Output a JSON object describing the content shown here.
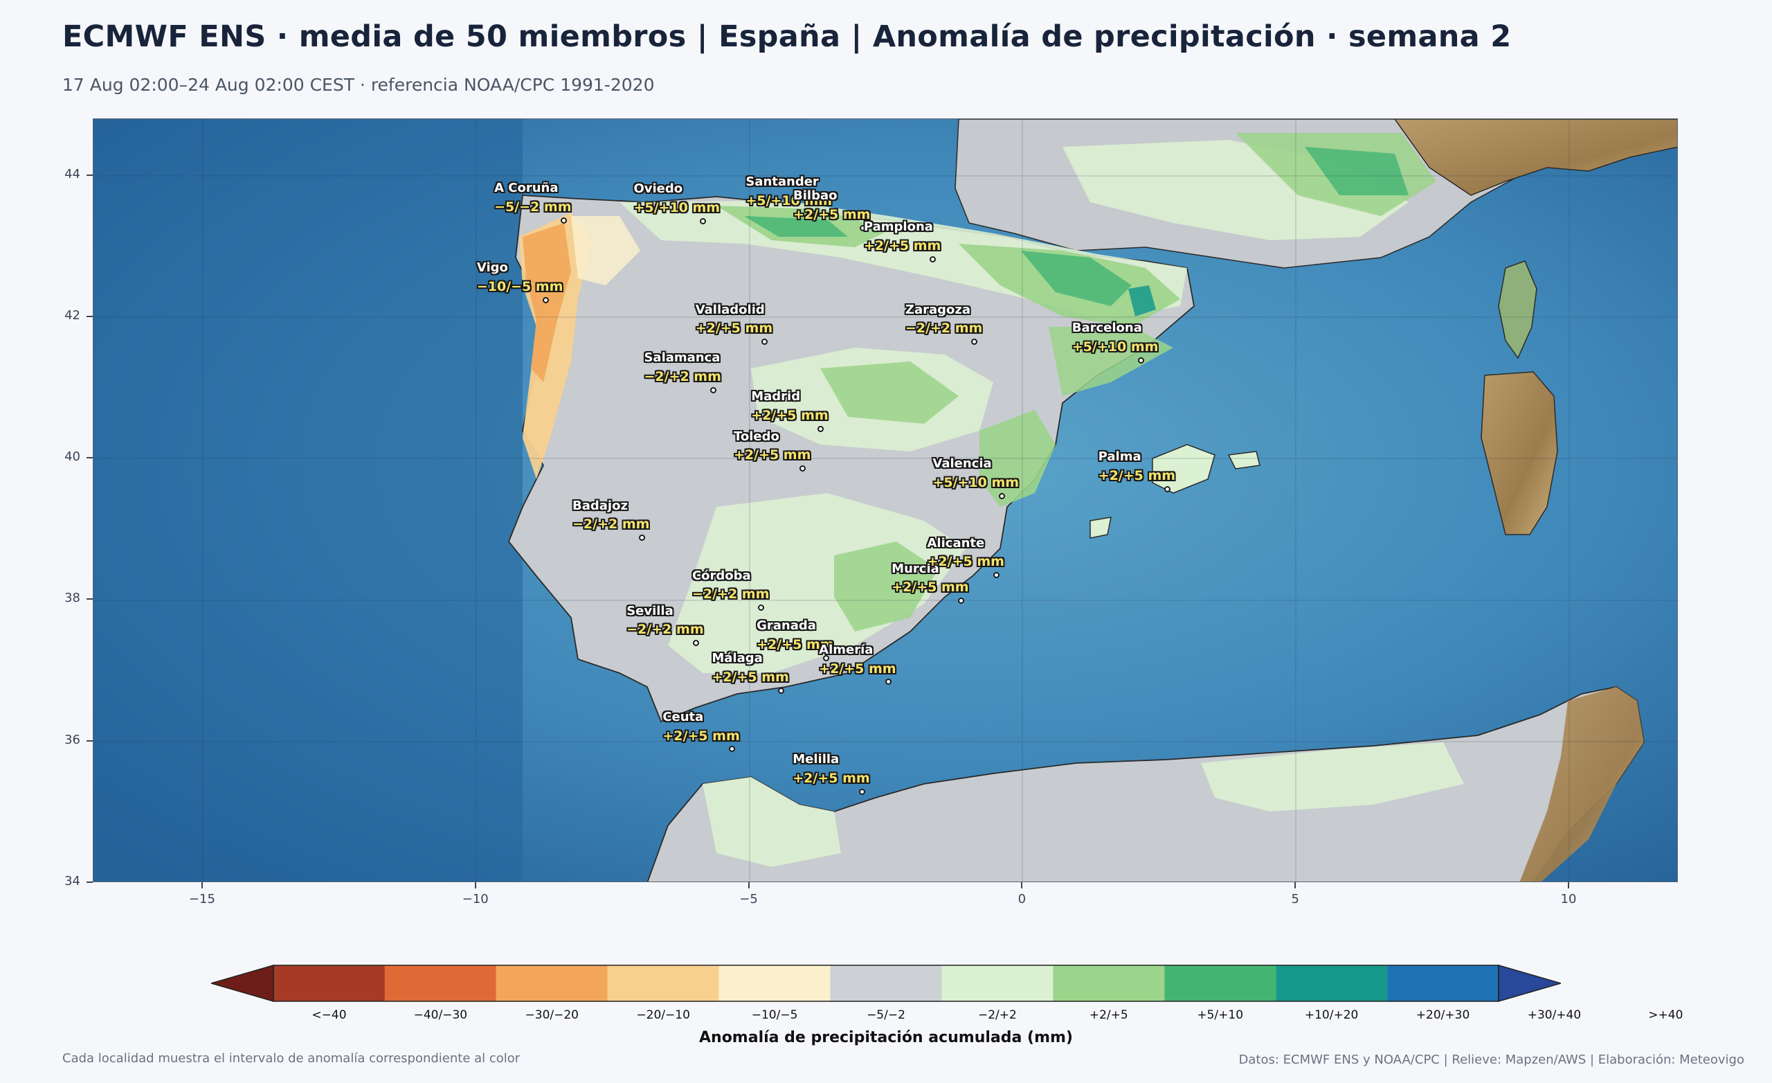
{
  "header": {
    "title": "ECMWF ENS · media de 50 miembros | España | Anomalía de precipitación · semana 2",
    "subtitle": "17 Aug 02:00–24 Aug 02:00 CEST · referencia NOAA/CPC 1991-2020"
  },
  "map": {
    "lon_range": [
      -17,
      12
    ],
    "lat_range": [
      34,
      44.8
    ],
    "lat_ticks": [
      44,
      42,
      40,
      38,
      36,
      34
    ],
    "lon_ticks": [
      -15,
      -10,
      -5,
      0,
      5,
      10
    ],
    "lat_tick_labels": [
      "44",
      "42",
      "40",
      "38",
      "36",
      "34"
    ],
    "lon_tick_labels": [
      "−15",
      "−10",
      "−5",
      "0",
      "5",
      "10"
    ],
    "colors": {
      "sea_deep": "#2b6a9c",
      "sea_shallow": "#5aa3c9",
      "land_gray": "#c8cbcf",
      "relief_brown": "#a88858",
      "relief_green": "#8fb07a"
    }
  },
  "cities": [
    {
      "name": "A Coruña",
      "value": "−5/−2 mm",
      "lon": -8.4,
      "lat": 43.37
    },
    {
      "name": "Oviedo",
      "value": "+5/+10 mm",
      "lon": -5.85,
      "lat": 43.36
    },
    {
      "name": "Santander",
      "value": "+5/+10 mm",
      "lon": -3.8,
      "lat": 43.46
    },
    {
      "name": "Bilbao",
      "value": "+2/+5 mm",
      "lon": -2.93,
      "lat": 43.26
    },
    {
      "name": "Pamplona",
      "value": "+2/+5 mm",
      "lon": -1.64,
      "lat": 42.82
    },
    {
      "name": "Vigo",
      "value": "−10/−5 mm",
      "lon": -8.72,
      "lat": 42.24
    },
    {
      "name": "Valladolid",
      "value": "+2/+5 mm",
      "lon": -4.72,
      "lat": 41.65
    },
    {
      "name": "Zaragoza",
      "value": "−2/+2 mm",
      "lon": -0.88,
      "lat": 41.65
    },
    {
      "name": "Barcelona",
      "value": "+5/+10 mm",
      "lon": 2.17,
      "lat": 41.39
    },
    {
      "name": "Salamanca",
      "value": "−2/+2 mm",
      "lon": -5.66,
      "lat": 40.97
    },
    {
      "name": "Madrid",
      "value": "+2/+5 mm",
      "lon": -3.7,
      "lat": 40.42
    },
    {
      "name": "Toledo",
      "value": "+2/+5 mm",
      "lon": -4.02,
      "lat": 39.86
    },
    {
      "name": "Valencia",
      "value": "+5/+10 mm",
      "lon": -0.38,
      "lat": 39.47
    },
    {
      "name": "Palma",
      "value": "+2/+5 mm",
      "lon": 2.65,
      "lat": 39.57
    },
    {
      "name": "Badajoz",
      "value": "−2/+2 mm",
      "lon": -6.97,
      "lat": 38.88
    },
    {
      "name": "Murcia",
      "value": "+2/+5 mm",
      "lon": -1.13,
      "lat": 37.99
    },
    {
      "name": "Alicante",
      "value": "+2/+5 mm",
      "lon": -0.48,
      "lat": 38.35
    },
    {
      "name": "Córdoba",
      "value": "−2/+2 mm",
      "lon": -4.78,
      "lat": 37.89
    },
    {
      "name": "Granada",
      "value": "+2/+5 mm",
      "lon": -3.6,
      "lat": 37.18
    },
    {
      "name": "Sevilla",
      "value": "−2/+2 mm",
      "lon": -5.98,
      "lat": 37.39
    },
    {
      "name": "Almería",
      "value": "+2/+5 mm",
      "lon": -2.46,
      "lat": 36.84
    },
    {
      "name": "Málaga",
      "value": "+2/+5 mm",
      "lon": -4.42,
      "lat": 36.72
    },
    {
      "name": "Ceuta",
      "value": "+2/+5 mm",
      "lon": -5.32,
      "lat": 35.89
    },
    {
      "name": "Melilla",
      "value": "+2/+5 mm",
      "lon": -2.94,
      "lat": 35.29
    }
  ],
  "colorbar": {
    "title": "Anomalía de precipitación acumulada (mm)",
    "bins": [
      {
        "label": "<−40",
        "color": "#6e1e18"
      },
      {
        "label": "−40/−30",
        "color": "#a63a26"
      },
      {
        "label": "−30/−20",
        "color": "#e06a35"
      },
      {
        "label": "−20/−10",
        "color": "#f3a65a"
      },
      {
        "label": "−10/−5",
        "color": "#f7d08e"
      },
      {
        "label": "−5/−2",
        "color": "#faf0cc"
      },
      {
        "label": "−2/+2",
        "color": "#cdd1d5"
      },
      {
        "label": "+2/+5",
        "color": "#dcf0d2"
      },
      {
        "label": "+5/+10",
        "color": "#9bd48a"
      },
      {
        "label": "+10/+20",
        "color": "#44b473"
      },
      {
        "label": "+20/+30",
        "color": "#16998a"
      },
      {
        "label": "+30/+40",
        "color": "#1f72b4"
      },
      {
        "label": ">+40",
        "color": "#28489a"
      }
    ]
  },
  "footer": {
    "left": "Cada localidad muestra el intervalo de anomalía correspondiente al color",
    "right": "Datos: ECMWF ENS y NOAA/CPC | Relieve: Mapzen/AWS | Elaboración: Meteovigo"
  }
}
